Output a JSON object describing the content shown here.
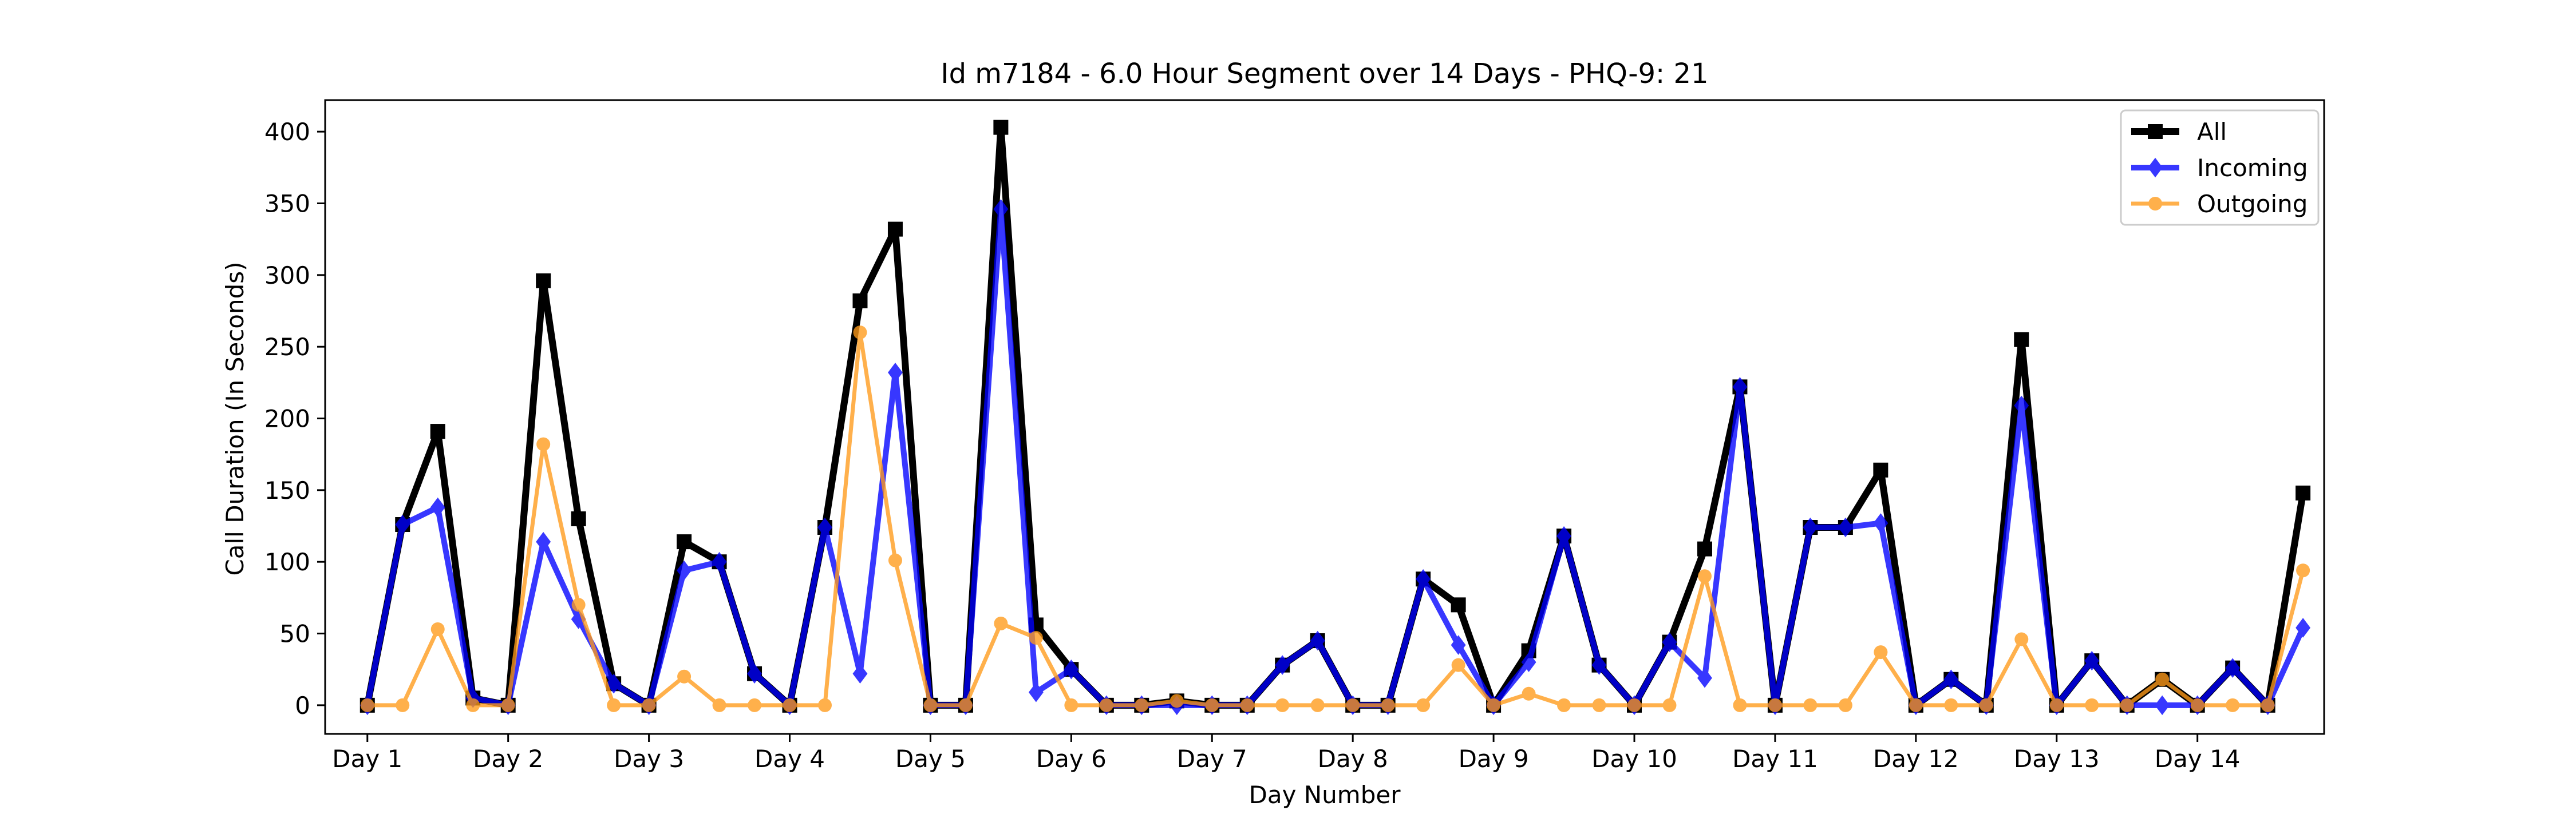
{
  "chart_data": {
    "type": "line",
    "title": "Id m7184 - 6.0 Hour Segment over 14 Days - PHQ-9: 21",
    "xlabel": "Day Number",
    "ylabel": "Call Duration (In Seconds)",
    "x_ticks": [
      "Day 1",
      "Day 2",
      "Day 3",
      "Day 4",
      "Day 5",
      "Day 6",
      "Day 7",
      "Day 8",
      "Day 9",
      "Day 10",
      "Day 11",
      "Day 12",
      "Day 13",
      "Day 14"
    ],
    "y_ticks": [
      0,
      50,
      100,
      150,
      200,
      250,
      300,
      350,
      400
    ],
    "ylim": [
      -20,
      422
    ],
    "xlim": [
      -0.3,
      13.9
    ],
    "points_per_day": 4,
    "grid": false,
    "legend_position": "top-right",
    "series": [
      {
        "name": "All",
        "color": "#000000",
        "marker": "square",
        "values": [
          0,
          126,
          191,
          5,
          0,
          296,
          130,
          15,
          0,
          114,
          100,
          22,
          0,
          124,
          282,
          332,
          0,
          0,
          403,
          56,
          25,
          0,
          0,
          3,
          0,
          0,
          28,
          45,
          0,
          0,
          88,
          70,
          0,
          38,
          118,
          28,
          0,
          44,
          109,
          222,
          0,
          124,
          124,
          164,
          0,
          18,
          0,
          255,
          0,
          31,
          0,
          18,
          0,
          26,
          0,
          148
        ]
      },
      {
        "name": "Incoming",
        "color": "#0000ff",
        "marker": "diamond",
        "values": [
          0,
          126,
          138,
          5,
          0,
          114,
          60,
          15,
          0,
          94,
          100,
          22,
          0,
          124,
          22,
          232,
          0,
          0,
          346,
          9,
          25,
          0,
          0,
          0,
          0,
          0,
          28,
          45,
          0,
          0,
          88,
          42,
          0,
          30,
          118,
          28,
          0,
          44,
          19,
          222,
          0,
          124,
          124,
          127,
          0,
          18,
          0,
          209,
          0,
          31,
          0,
          0,
          0,
          26,
          0,
          54
        ]
      },
      {
        "name": "Outgoing",
        "color": "#ff9a19",
        "marker": "circle",
        "values": [
          0,
          0,
          53,
          0,
          0,
          182,
          70,
          0,
          0,
          20,
          0,
          0,
          0,
          0,
          260,
          101,
          0,
          0,
          57,
          47,
          0,
          0,
          0,
          3,
          0,
          0,
          0,
          0,
          0,
          0,
          0,
          28,
          0,
          8,
          0,
          0,
          0,
          0,
          90,
          0,
          0,
          0,
          0,
          37,
          0,
          0,
          0,
          46,
          0,
          0,
          0,
          18,
          0,
          0,
          0,
          94
        ]
      }
    ]
  }
}
